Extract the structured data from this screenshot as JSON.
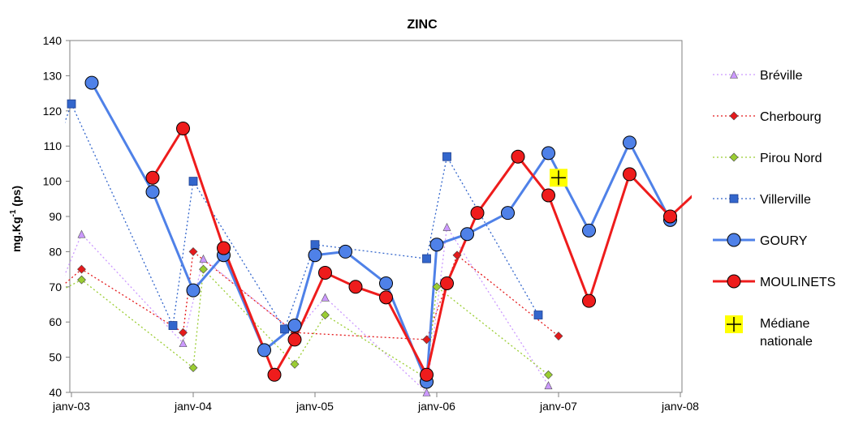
{
  "chart_data": {
    "type": "line",
    "title": "ZINC",
    "ylabel": "mg.Kg-1 (ps)",
    "ylabel_main": "mg.Kg",
    "ylabel_sup": "-1",
    "ylabel_tail": " (ps)",
    "xlabel": "",
    "x_ticks": [
      "janv-03",
      "janv-04",
      "janv-05",
      "janv-06",
      "janv-07",
      "janv-08"
    ],
    "xlim": [
      "2003-01",
      "2008-01"
    ],
    "ylim": [
      40,
      140
    ],
    "y_ticks": [
      "40",
      "50",
      "60",
      "70",
      "80",
      "90",
      "100",
      "110",
      "120",
      "130",
      "140"
    ],
    "grid": false,
    "legend_position": "right",
    "series": [
      {
        "name": "Bréville",
        "color": "#cc99ff",
        "line": "dotted",
        "marker": "triangle",
        "points": [
          [
            "2002-10",
            57
          ],
          [
            "2003-02",
            85
          ],
          [
            "2003-12",
            54
          ],
          [
            "2004-02",
            78
          ],
          [
            "2004-11",
            57
          ],
          [
            "2005-02",
            67
          ],
          [
            "2005-12",
            40
          ],
          [
            "2006-02",
            87
          ],
          [
            "2006-12",
            42
          ]
        ]
      },
      {
        "name": "Cherbourg",
        "color": "#e41a1c",
        "line": "dotted",
        "marker": "diamond",
        "points": [
          [
            "2002-10",
            65
          ],
          [
            "2003-02",
            75
          ],
          [
            "2003-12",
            57
          ],
          [
            "2004-01",
            80
          ],
          [
            "2004-11",
            57
          ],
          [
            "2005-12",
            55
          ],
          [
            "2006-03",
            79
          ],
          [
            "2007-01",
            56
          ]
        ]
      },
      {
        "name": "Pirou Nord",
        "color": "#9acd32",
        "line": "dotted",
        "marker": "diamond",
        "points": [
          [
            "2002-10",
            66
          ],
          [
            "2003-02",
            72
          ],
          [
            "2004-01",
            47
          ],
          [
            "2004-02",
            75
          ],
          [
            "2004-11",
            48
          ],
          [
            "2005-02",
            62
          ],
          [
            "2005-12",
            44
          ],
          [
            "2006-01",
            70
          ],
          [
            "2006-12",
            45
          ]
        ]
      },
      {
        "name": "Villerville",
        "color": "#3366cc",
        "line": "dotted",
        "marker": "square",
        "points": [
          [
            "2002-10",
            98
          ],
          [
            "2003-01",
            122
          ],
          [
            "2003-11",
            59
          ],
          [
            "2004-01",
            100
          ],
          [
            "2004-10",
            58
          ],
          [
            "2005-01",
            82
          ],
          [
            "2005-12",
            78
          ],
          [
            "2006-02",
            107
          ],
          [
            "2006-11",
            62
          ]
        ]
      },
      {
        "name": "GOURY",
        "color": "#4f81e8",
        "line": "solid",
        "marker": "circle",
        "points": [
          [
            "2003-03",
            128
          ],
          [
            "2003-09",
            97
          ],
          [
            "2004-01",
            69
          ],
          [
            "2004-04",
            79
          ],
          [
            "2004-08",
            52
          ],
          [
            "2004-11",
            59
          ],
          [
            "2005-01",
            79
          ],
          [
            "2005-04",
            80
          ],
          [
            "2005-08",
            71
          ],
          [
            "2005-12",
            43
          ],
          [
            "2006-01",
            82
          ],
          [
            "2006-04",
            85
          ],
          [
            "2006-08",
            91
          ],
          [
            "2006-12",
            108
          ],
          [
            "2007-04",
            86
          ],
          [
            "2007-08",
            111
          ],
          [
            "2007-12",
            89
          ]
        ]
      },
      {
        "name": "MOULINETS",
        "color": "#ee1c1c",
        "line": "solid",
        "marker": "circle",
        "points": [
          [
            "2003-09",
            101
          ],
          [
            "2003-12",
            115
          ],
          [
            "2004-04",
            81
          ],
          [
            "2004-09",
            45
          ],
          [
            "2004-11",
            55
          ],
          [
            "2005-02",
            74
          ],
          [
            "2005-05",
            70
          ],
          [
            "2005-08",
            67
          ],
          [
            "2005-12",
            45
          ],
          [
            "2006-02",
            71
          ],
          [
            "2006-05",
            91
          ],
          [
            "2006-09",
            107
          ],
          [
            "2006-12",
            96
          ],
          [
            "2007-04",
            66
          ],
          [
            "2007-08",
            102
          ],
          [
            "2007-12",
            90
          ],
          [
            "2008-03",
            98
          ]
        ]
      }
    ],
    "reference_series": {
      "name_line1": "Médiane",
      "name_line2": "nationale",
      "color": "#ffff00",
      "marker": "plus",
      "points": [
        [
          "2007-01",
          101
        ]
      ]
    }
  }
}
